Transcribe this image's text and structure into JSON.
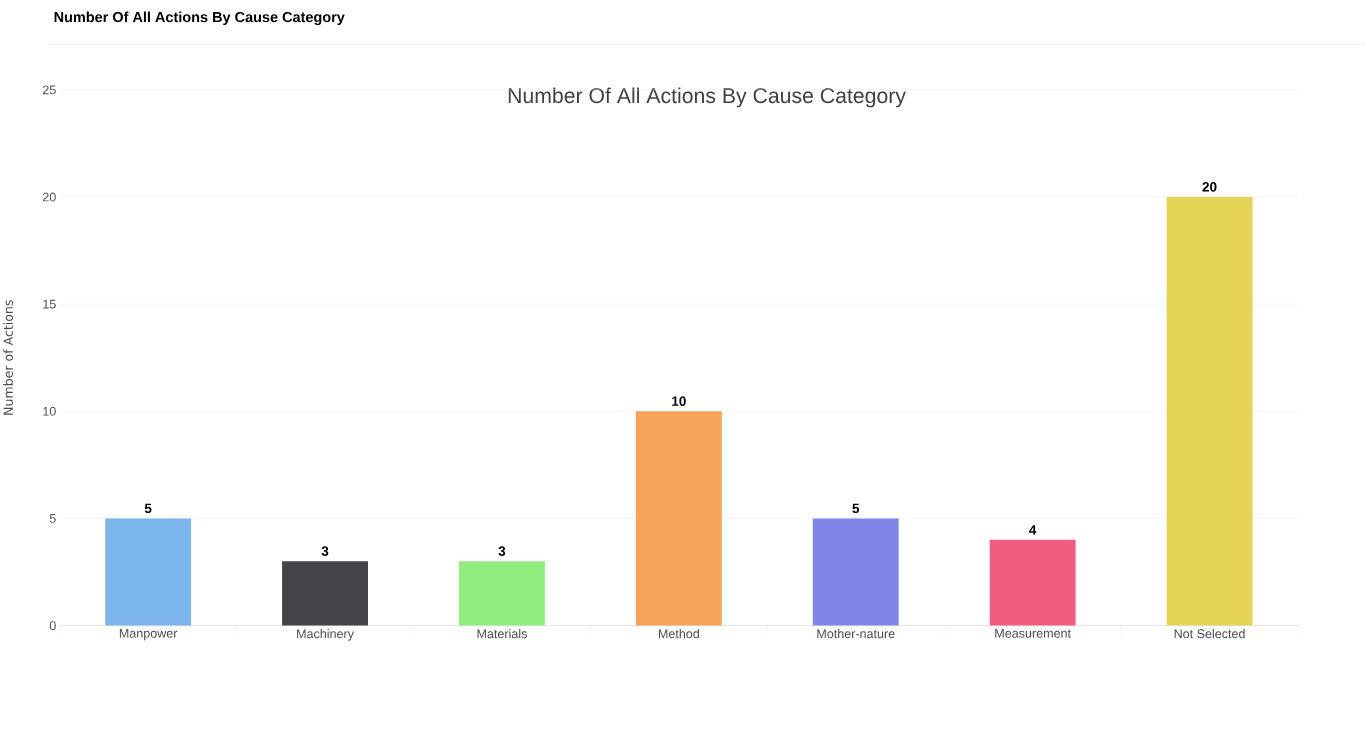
{
  "chart_data": {
    "type": "bar",
    "title": "Number Of All Actions By Cause Category",
    "annotations": [
      "Number Of All Actions By Cause Category"
    ],
    "ylabel": "Number of Actions",
    "categories": [
      "Manpower",
      "Machinery",
      "Materials",
      "Method",
      "Mother-nature",
      "Measurement",
      "Not Selected"
    ],
    "values": [
      5,
      3,
      3,
      10,
      5,
      4,
      20
    ],
    "colors": [
      "#7cb5ec",
      "#434348",
      "#90ed7d",
      "#f7a35c",
      "#8085e9",
      "#f15c80",
      "#e4d354"
    ],
    "ylim": [
      0,
      25
    ],
    "yticks": [
      0,
      5,
      10,
      15,
      20,
      25
    ],
    "grid": "y",
    "data_labels": true
  }
}
